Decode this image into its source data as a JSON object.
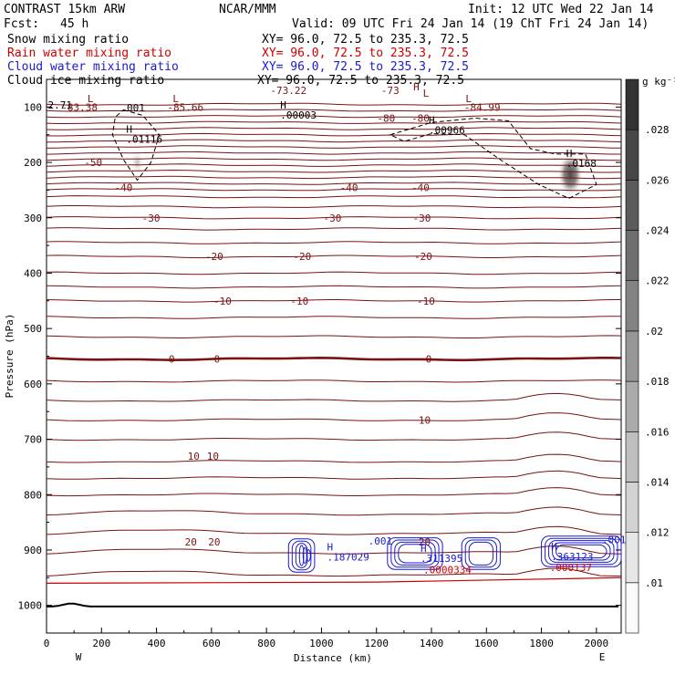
{
  "header": {
    "model": "CONTRAST 15km ARW",
    "org": "NCAR/MMM",
    "init": "Init: 12 UTC Wed 22 Jan 14",
    "fcst_label": "Fcst:",
    "fcst_value": "45 h",
    "valid": "Valid: 09 UTC Fri 24 Jan 14 (19 ChT Fri 24 Jan 14)"
  },
  "fields": [
    {
      "name": "Snow mixing ratio",
      "xy": "XY=  96.0, 72.5 to 235.3, 72.5",
      "color": "#000000"
    },
    {
      "name": "Rain water mixing ratio",
      "xy": "XY=  96.0, 72.5 to 235.3, 72.5",
      "color": "#cc0000"
    },
    {
      "name": "Cloud water mixing ratio",
      "xy": "XY=  96.0, 72.5 to 235.3, 72.5",
      "color": "#1a1ad0"
    },
    {
      "name": "Cloud ice mixing ratio",
      "xy": "XY=  96.0, 72.5 to 235.3, 72.5",
      "color": "#000000"
    }
  ],
  "colors": {
    "temperature": "#7a1212",
    "rain": "#cc0000",
    "cloud_water": "#1a1ad0",
    "cloud_ice": "#000000",
    "terrain": "#000000"
  },
  "chart_data": {
    "type": "cross-section",
    "xlabel": "Distance (km)",
    "ylabel": "Pressure (hPa)",
    "xlim": [
      0,
      2090
    ],
    "ylim": [
      1050,
      50
    ],
    "xticks": [
      0,
      200,
      400,
      600,
      800,
      1000,
      1200,
      1400,
      1600,
      1800,
      2000
    ],
    "yticks": [
      100,
      200,
      300,
      400,
      500,
      600,
      700,
      800,
      900,
      1000
    ],
    "ytick_labels": [
      "100",
      "200",
      "300",
      "400",
      "500",
      "600",
      "700",
      "800",
      "900",
      "1000"
    ],
    "xtick_labels": [
      "0",
      "200",
      "400",
      "600",
      "800",
      "1000",
      "1200",
      "1400",
      "1600",
      "1800",
      "2000"
    ],
    "west_label": "W",
    "east_label": "E",
    "colorbar": {
      "units": "g kg⁻¹",
      "levels": [
        0.01,
        0.012,
        0.014,
        0.016,
        0.018,
        0.02,
        0.022,
        0.024,
        0.026,
        0.028
      ],
      "labels": [
        ".01",
        ".012",
        ".014",
        ".016",
        ".018",
        ".02",
        ".022",
        ".024",
        ".026",
        ".028"
      ]
    },
    "temperature_contours": [
      {
        "pressure": 100,
        "label": "-83.38",
        "x": 120
      },
      {
        "pressure": 100,
        "label": "-85.66",
        "x": 505
      },
      {
        "pressure": 70,
        "label": "-73.22",
        "x": 880
      },
      {
        "pressure": 70,
        "label": "-73",
        "x": 1250
      },
      {
        "pressure": 120,
        "label": "-80",
        "x": 1235
      },
      {
        "pressure": 120,
        "label": "-80",
        "x": 1360
      },
      {
        "pressure": 100,
        "label": "-84.99",
        "x": 1585
      },
      {
        "pressure": 200,
        "label": "-50",
        "x": 170
      },
      {
        "pressure": 245,
        "label": "-40",
        "x": 280
      },
      {
        "pressure": 245,
        "label": "-40",
        "x": 1100
      },
      {
        "pressure": 245,
        "label": "-40",
        "x": 1360
      },
      {
        "pressure": 300,
        "label": "-30",
        "x": 380
      },
      {
        "pressure": 300,
        "label": "-30",
        "x": 1040
      },
      {
        "pressure": 300,
        "label": "-30",
        "x": 1365
      },
      {
        "pressure": 370,
        "label": "-20",
        "x": 610
      },
      {
        "pressure": 370,
        "label": "-20",
        "x": 930
      },
      {
        "pressure": 370,
        "label": "-20",
        "x": 1370
      },
      {
        "pressure": 450,
        "label": "-10",
        "x": 640
      },
      {
        "pressure": 450,
        "label": "-10",
        "x": 920
      },
      {
        "pressure": 450,
        "label": "-10",
        "x": 1380
      },
      {
        "pressure": 555,
        "label": "0",
        "x": 455
      },
      {
        "pressure": 555,
        "label": "0",
        "x": 620
      },
      {
        "pressure": 555,
        "label": "0",
        "x": 1390
      },
      {
        "pressure": 665,
        "label": "10",
        "x": 1375
      },
      {
        "pressure": 730,
        "label": "10",
        "x": 535
      },
      {
        "pressure": 730,
        "label": "10",
        "x": 605
      },
      {
        "pressure": 885,
        "label": "20",
        "x": 525
      },
      {
        "pressure": 885,
        "label": "20",
        "x": 610
      },
      {
        "pressure": 885,
        "label": "20",
        "x": 1375
      }
    ],
    "extrema": [
      {
        "type": "L",
        "x": 160,
        "pressure": 85,
        "color": "#7a1212"
      },
      {
        "type": "L",
        "x": 470,
        "pressure": 85,
        "color": "#7a1212"
      },
      {
        "type": "L",
        "x": 1535,
        "pressure": 85,
        "color": "#7a1212"
      },
      {
        "type": "H",
        "x": 1345,
        "pressure": 63,
        "color": "#7a1212"
      },
      {
        "type": "L",
        "x": 1380,
        "pressure": 75,
        "color": "#7a1212"
      }
    ],
    "point_labels": [
      {
        "label": "2.71",
        "x": 5,
        "pressure": 103,
        "color": "#000000"
      },
      {
        "label": ".001",
        "x": 270,
        "pressure": 108,
        "color": "#000000"
      },
      {
        "type": "H",
        "x": 290,
        "pressure": 146,
        "color": "#000000",
        "label": ".01116"
      },
      {
        "type": "H",
        "x": 850,
        "pressure": 103,
        "color": "#000000",
        "label": ".00003"
      },
      {
        "type": "H",
        "x": 1390,
        "pressure": 130,
        "color": "#000000",
        "label": ".00966"
      },
      {
        "type": "H",
        "x": 1890,
        "pressure": 190,
        "color": "#000000",
        "label": ".0168"
      },
      {
        "type": "H",
        "x": 1020,
        "pressure": 901,
        "color": "#1a1ad0",
        "label": ".187029"
      },
      {
        "type": "H",
        "x": 1360,
        "pressure": 903,
        "color": "#1a1ad0",
        "label": ".311395"
      },
      {
        "type": "H",
        "x": 1835,
        "pressure": 900,
        "color": "#1a1ad0",
        "label": ".363123"
      }
    ],
    "cloud_water_labels": [
      {
        "label": ".001",
        "x": 1170,
        "pressure": 890
      },
      {
        "label": ".001",
        "x": 2020,
        "pressure": 888
      }
    ],
    "rain_labels": [
      {
        "label": ".0000334",
        "x": 1370,
        "pressure": 942
      },
      {
        "label": ".000137",
        "x": 1830,
        "pressure": 938
      }
    ],
    "ice_maxima": [
      {
        "x": 330,
        "pressure": 200,
        "value": 0.011
      },
      {
        "x": 1905,
        "pressure": 222,
        "value": 0.0168
      }
    ]
  }
}
